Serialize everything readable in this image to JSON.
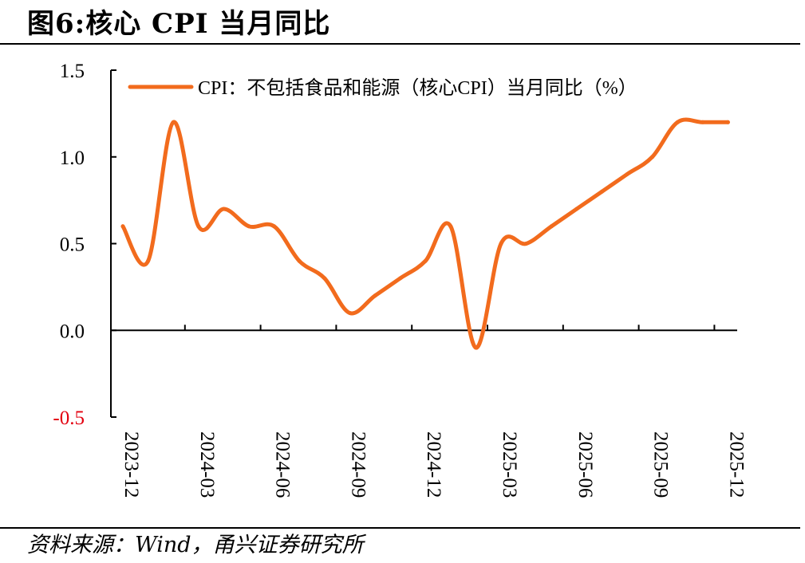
{
  "title": "图6:核心 CPI 当月同比",
  "source": "资料来源：Wind，甬兴证券研究所",
  "colors": {
    "series": "#f26b1d",
    "axis": "#000000",
    "negative_tick": "#e3000f"
  },
  "chart_data": {
    "type": "line",
    "title": "",
    "xlabel": "",
    "ylabel": "",
    "ylim": [
      -0.5,
      1.5
    ],
    "yticks": [
      "1.5",
      "1.0",
      "0.5",
      "0.0",
      "-0.5"
    ],
    "xtick_labels": [
      "2023-12",
      "2024-03",
      "2024-06",
      "2024-09",
      "2024-12",
      "2025-03",
      "2025-06",
      "2025-09",
      "2025-12"
    ],
    "grid": false,
    "legend_position": "top",
    "x": [
      "2023-12",
      "2024-01",
      "2024-02",
      "2024-03",
      "2024-04",
      "2024-05",
      "2024-06",
      "2024-07",
      "2024-08",
      "2024-09",
      "2024-10",
      "2024-11",
      "2024-12",
      "2025-01",
      "2025-02",
      "2025-03",
      "2025-04",
      "2025-05",
      "2025-06",
      "2025-07",
      "2025-08",
      "2025-09",
      "2025-10",
      "2025-11",
      "2025-12"
    ],
    "series": [
      {
        "name": "CPI：不包括食品和能源（核心CPI）当月同比（%）",
        "values": [
          0.6,
          0.4,
          1.2,
          0.6,
          0.7,
          0.6,
          0.6,
          0.4,
          0.3,
          0.1,
          0.2,
          0.3,
          0.4,
          0.6,
          -0.1,
          0.5,
          0.5,
          0.6,
          0.7,
          0.8,
          0.9,
          1.0,
          1.2,
          1.2,
          1.2
        ]
      }
    ]
  }
}
